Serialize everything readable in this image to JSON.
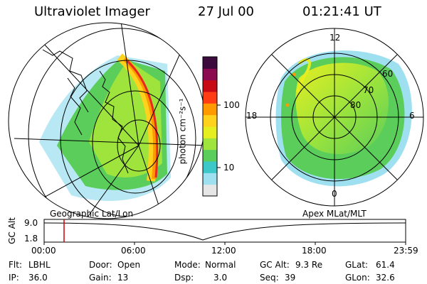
{
  "header": {
    "instrument": "Ultraviolet Imager",
    "date": "27 Jul 00",
    "time": "01:21:41 UT"
  },
  "colorbar": {
    "unit_label": "photon cm⁻²s⁻¹",
    "tick_100": "100",
    "tick_10": "10",
    "colors": [
      "#e6e6e6",
      "#9fe0f0",
      "#3cc8c8",
      "#5acd5a",
      "#9ee43c",
      "#e6ee20",
      "#ffd21e",
      "#ff9b00",
      "#ff3c14",
      "#c80a14",
      "#8c0a50",
      "#3c0a3c"
    ]
  },
  "projections": {
    "left_label": "Geographic Lat/Lon",
    "right_label": "Apex MLat/MLT",
    "mlt_labels": {
      "top": "12",
      "left": "18",
      "right": "6",
      "bottom": "0"
    },
    "mlat_labels": [
      "60",
      "70",
      "80"
    ]
  },
  "altitude_plot": {
    "ylabel": "GC Alt",
    "ytick_high": "9.0",
    "ytick_low": "1.8",
    "xticks": [
      "00:00",
      "06:00",
      "12:00",
      "18:00",
      "23:59"
    ],
    "marker_color": "#cc0000"
  },
  "info": {
    "flt_label": "Flt:",
    "flt_value": "LBHL",
    "ip_label": "IP:",
    "ip_value": "36.0",
    "door_label": "Door:",
    "door_value": "Open",
    "gain_label": "Gain:",
    "gain_value": "13",
    "mode_label": "Mode:",
    "mode_value": "Normal",
    "dsp_label": "Dsp:",
    "dsp_value": "3.0",
    "gcalt_label": "GC Alt:",
    "gcalt_value": "9.3 Re",
    "seq_label": "Seq:",
    "seq_value": "39",
    "glat_label": "GLat:",
    "glat_value": "61.4",
    "glon_label": "GLon:",
    "glon_value": "32.6"
  }
}
